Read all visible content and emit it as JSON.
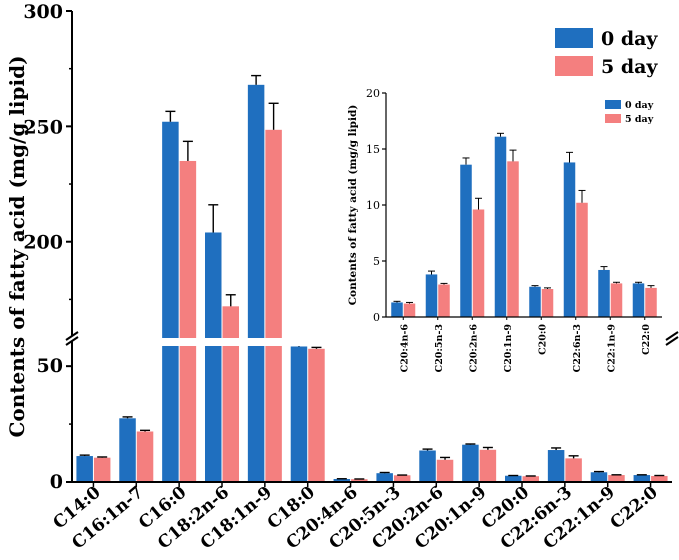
{
  "chart_data": [
    {
      "id": "main",
      "type": "bar",
      "ylabel": "Contents of fatty acid (mg/g lipid)",
      "xlabel": "",
      "axis_break": {
        "lower_range": [
          0,
          60
        ],
        "upper_range": [
          160,
          300
        ]
      },
      "yticks_lower": [
        0,
        50
      ],
      "yticks_upper": [
        200,
        250,
        300
      ],
      "categories": [
        "C14:0",
        "C16:1n-7",
        "C16:0",
        "C18:2n-6",
        "C18:1n-9",
        "C18:0",
        "C20:4n-6",
        "C20:5n-3",
        "C20:2n-6",
        "C20:1n-9",
        "C20:0",
        "C22:6n-3",
        "C22:1n-9",
        "C22:0"
      ],
      "series": [
        {
          "name": "0 day",
          "color": "#1f6fbf",
          "values": [
            11.2,
            27.5,
            252,
            204,
            268,
            58.5,
            1.3,
            3.8,
            13.6,
            16.1,
            2.7,
            13.8,
            4.2,
            3.0
          ],
          "errors": [
            0.4,
            0.6,
            4.5,
            12,
            4,
            1.2,
            0.1,
            0.3,
            0.6,
            0.3,
            0.1,
            0.9,
            0.3,
            0.1
          ]
        },
        {
          "name": "5 day",
          "color": "#f47f7f",
          "values": [
            10.5,
            21.8,
            235,
            172,
            248.5,
            57.5,
            1.2,
            2.9,
            9.6,
            13.9,
            2.5,
            10.2,
            3.0,
            2.6
          ],
          "errors": [
            0.3,
            0.5,
            8.5,
            5,
            11.5,
            0.6,
            0.1,
            0.1,
            1.0,
            1.0,
            0.1,
            1.1,
            0.1,
            0.2
          ]
        }
      ],
      "legend": {
        "position": "top-right",
        "entries": [
          "0 day",
          "5 day"
        ]
      }
    },
    {
      "id": "inset",
      "type": "bar",
      "ylabel": "Contents of fatty acid (mg/g lipid)",
      "xlabel": "",
      "ylim": [
        0,
        20
      ],
      "yticks": [
        0,
        5,
        10,
        15,
        20
      ],
      "categories": [
        "C20:4n-6",
        "C20:5n-3",
        "C20:2n-6",
        "C20:1n-9",
        "C20:0",
        "C22:6n-3",
        "C22:1n-9",
        "C22:0"
      ],
      "series": [
        {
          "name": "0 day",
          "color": "#1f6fbf",
          "values": [
            1.3,
            3.8,
            13.6,
            16.1,
            2.7,
            13.8,
            4.2,
            3.0
          ],
          "errors": [
            0.1,
            0.3,
            0.6,
            0.3,
            0.1,
            0.9,
            0.3,
            0.1
          ]
        },
        {
          "name": "5 day",
          "color": "#f47f7f",
          "values": [
            1.2,
            2.9,
            9.6,
            13.9,
            2.5,
            10.2,
            3.0,
            2.6
          ],
          "errors": [
            0.1,
            0.1,
            1.0,
            1.0,
            0.1,
            1.1,
            0.1,
            0.2
          ]
        }
      ],
      "legend": {
        "position": "top-right",
        "entries": [
          "0 day",
          "5 day"
        ]
      }
    }
  ]
}
